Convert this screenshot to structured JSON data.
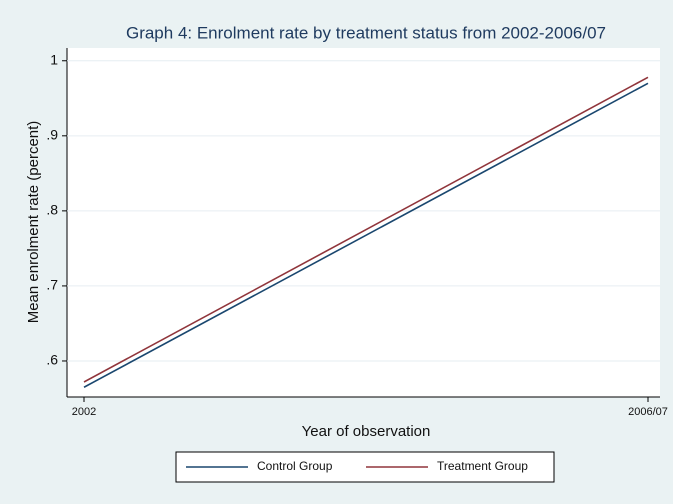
{
  "chart_data": {
    "type": "line",
    "title": "Graph 4: Enrolment rate by treatment status from 2002-2006/07",
    "x_label": "Year of observation",
    "y_label": "Mean enrolment rate (percent)",
    "categories": [
      "2002",
      "2006/07"
    ],
    "series": [
      {
        "name": "Control Group",
        "color": "#1a476f",
        "values": [
          0.565,
          0.97
        ]
      },
      {
        "name": "Treatment Group",
        "color": "#90353b",
        "values": [
          0.572,
          0.978
        ]
      }
    ],
    "ylim": [
      0.552,
      1.017
    ],
    "yticks": [
      {
        "value": 0.6,
        "label": ".6"
      },
      {
        "value": 0.7,
        "label": ".7"
      },
      {
        "value": 0.8,
        "label": ".8"
      },
      {
        "value": 0.9,
        "label": ".9"
      },
      1
    ],
    "grid": true
  }
}
